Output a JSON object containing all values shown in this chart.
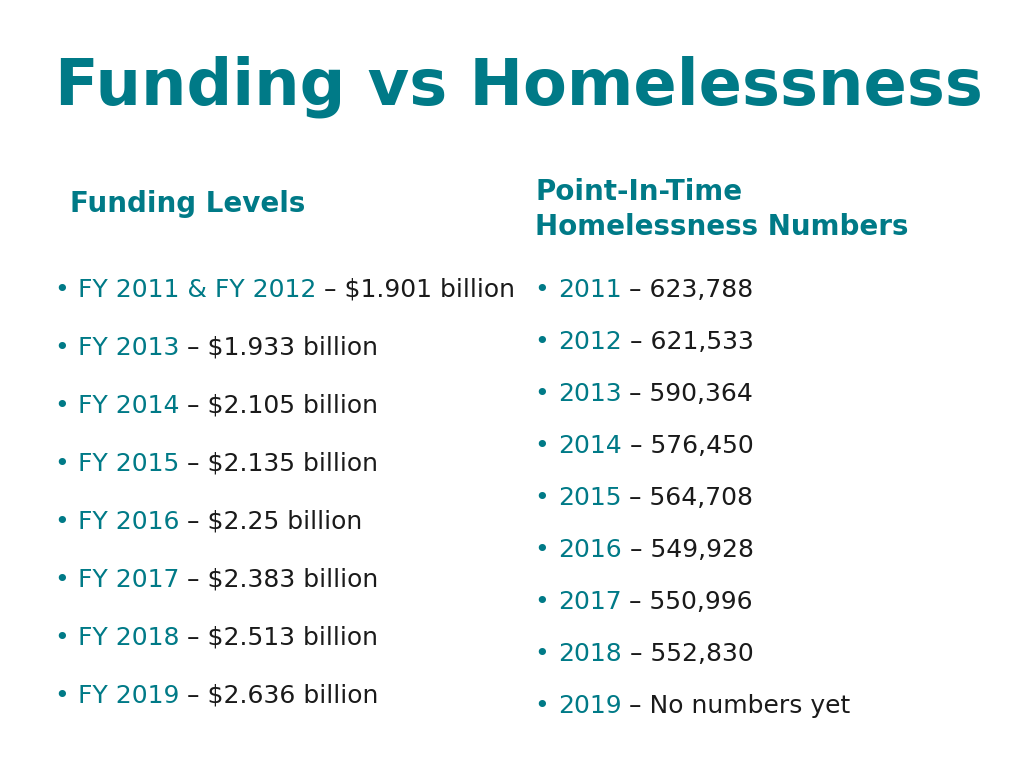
{
  "title": "Funding vs Homelessness",
  "title_color": "#007a87",
  "background_color": "#ffffff",
  "col1_header": "Funding Levels",
  "col2_header": "Point-In-Time\nHomelessness Numbers",
  "header_color": "#007a87",
  "teal": "#007a87",
  "dark": "#1a1a1a",
  "funding_items": [
    {
      "year": "FY 2011 & FY 2012",
      "rest": " – $1.901 billion"
    },
    {
      "year": "FY 2013",
      "rest": " – $1.933 billion"
    },
    {
      "year": "FY 2014",
      "rest": " – $2.105 billion"
    },
    {
      "year": "FY 2015",
      "rest": " – $2.135 billion"
    },
    {
      "year": "FY 2016",
      "rest": " – $2.25 billion"
    },
    {
      "year": "FY 2017",
      "rest": " – $2.383 billion"
    },
    {
      "year": "FY 2018",
      "rest": " – $2.513 billion"
    },
    {
      "year": "FY 2019",
      "rest": " – $2.636 billion"
    }
  ],
  "homelessness_items": [
    {
      "year": "2011",
      "rest": " – 623,788"
    },
    {
      "year": "2012",
      "rest": " – 621,533"
    },
    {
      "year": "2013",
      "rest": " – 590,364"
    },
    {
      "year": "2014",
      "rest": " – 576,450"
    },
    {
      "year": "2015",
      "rest": " – 564,708"
    },
    {
      "year": "2016",
      "rest": " – 549,928"
    },
    {
      "year": "2017",
      "rest": " – 550,996"
    },
    {
      "year": "2018",
      "rest": " – 552,830"
    },
    {
      "year": "2019",
      "rest": " – No numbers yet"
    }
  ],
  "title_fontsize": 46,
  "header_fontsize": 20,
  "body_fontsize": 18,
  "bullet_fontsize": 18
}
